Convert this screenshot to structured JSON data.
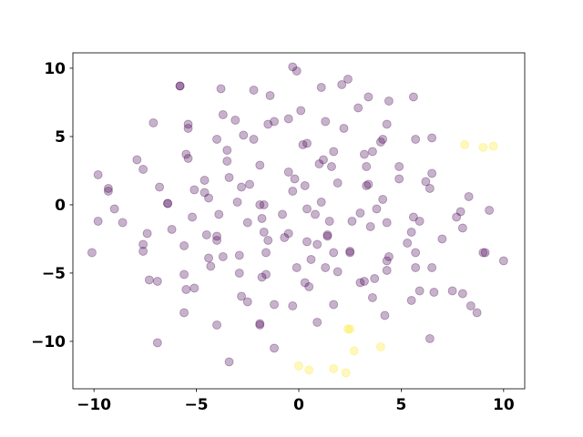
{
  "chart_data": {
    "type": "scatter",
    "xlim": [
      -11.03,
      11.03
    ],
    "ylim": [
      -13.47,
      11.13
    ],
    "xticks": [
      {
        "value": -10,
        "label": "−10"
      },
      {
        "value": -5,
        "label": "−5"
      },
      0,
      5,
      10
    ],
    "yticks": [
      {
        "value": -10,
        "label": "−10"
      },
      {
        "value": -5,
        "label": "−5"
      },
      0,
      5,
      10
    ],
    "series": [
      {
        "color": "#440154",
        "opacity": 0.3,
        "x": [
          -0.3,
          -0.1,
          -3.8,
          -2.2,
          -1.4,
          1.1,
          2.1,
          2.4,
          3.4,
          4.4,
          5.6,
          -5.8,
          -5.8,
          -7.1,
          -5.4,
          -5.4,
          -3.7,
          -3.1,
          -1.5,
          -1.2,
          -0.5,
          0.1,
          1.3,
          2.2,
          2.9,
          4.3,
          5.7,
          6.5,
          -2.2,
          -4.0,
          -2.7,
          -3.5,
          -3.5,
          -5.5,
          -5.4,
          -7.9,
          -7.6,
          -9.8,
          -9.3,
          -9.3,
          0.2,
          0.4,
          1.7,
          1.2,
          1.0,
          1.6,
          3.2,
          3.6,
          4.0,
          4.1,
          3.3,
          4.9,
          4.9,
          6.5,
          6.2,
          6.4,
          -1.9,
          -2.4,
          -3.4,
          -4.6,
          -5.1,
          -6.8,
          -6.4,
          -6.4,
          -4.4,
          -4.6,
          -2.8,
          -0.5,
          -0.2,
          0.3,
          1.1,
          1.9,
          3.3,
          3.4,
          4.1,
          8.3,
          -9.0,
          -9.8,
          -8.6,
          -7.4,
          -6.2,
          -5.2,
          -3.9,
          -3.0,
          -2.5,
          -1.8,
          -1.9,
          -1.7,
          -1.5,
          -1.7,
          -0.3,
          -0.8,
          -0.5,
          0.4,
          0.8,
          1.5,
          1.4,
          2.6,
          3.0,
          3.5,
          3.8,
          4.3,
          5.6,
          5.9,
          5.5,
          7.9,
          7.7,
          8.0,
          9.3,
          7.0,
          -7.6,
          -7.6,
          -5.6,
          -4.5,
          -4.0,
          -4.0,
          -2.9,
          -4.4,
          -4.3,
          -3.7,
          -1.6,
          -0.7,
          0.4,
          0.9,
          1.4,
          2.5,
          2.5,
          1.7,
          0.6,
          -0.1,
          1.3,
          1.9,
          3.2,
          3.7,
          4.4,
          4.3,
          4.3,
          5.3,
          5.7,
          5.7,
          6.5,
          9.0,
          9.1,
          10.0,
          -10.1,
          -7.3,
          -6.9,
          -5.6,
          -5.5,
          -5.1,
          -5.6,
          -2.9,
          -2.8,
          -2.5,
          -1.8,
          -1.6,
          -1.2,
          0.3,
          0.5,
          1.7,
          -0.3,
          3.6,
          3.0,
          5.5,
          5.9,
          6.6,
          7.5,
          8.0,
          8.4,
          8.7,
          4.2,
          -4.0,
          -1.9,
          -1.9,
          0.9,
          6.4,
          -6.9,
          -1.2,
          -3.4
        ],
        "values": [
          10.1,
          9.8,
          8.5,
          8.4,
          8.0,
          8.6,
          8.8,
          9.2,
          7.9,
          7.6,
          7.9,
          8.7,
          8.7,
          6.0,
          5.9,
          5.6,
          6.6,
          6.2,
          5.9,
          6.1,
          6.3,
          6.9,
          6.1,
          5.6,
          7.1,
          5.9,
          4.8,
          4.9,
          4.8,
          4.8,
          5.1,
          4.0,
          3.2,
          3.7,
          3.4,
          3.3,
          2.6,
          2.2,
          1.2,
          1.0,
          4.4,
          4.5,
          3.9,
          3.3,
          3.0,
          2.8,
          3.7,
          3.9,
          4.6,
          4.8,
          2.8,
          2.8,
          1.9,
          2.3,
          1.7,
          1.2,
          2.9,
          1.5,
          2.0,
          1.8,
          1.1,
          1.3,
          0.1,
          0.1,
          0.5,
          0.9,
          1.3,
          2.4,
          1.9,
          1.4,
          0.2,
          1.6,
          1.4,
          1.5,
          0.4,
          0.6,
          -0.3,
          -1.2,
          -1.3,
          -2.1,
          -1.8,
          -0.9,
          -0.7,
          0.2,
          -1.3,
          -1.0,
          0,
          0,
          -2.6,
          -2.0,
          1.0,
          -0.7,
          -2.1,
          -0.3,
          -0.7,
          -1.2,
          -2.2,
          -1.2,
          -0.6,
          -1.6,
          -0.3,
          -1.3,
          -0.9,
          -1.2,
          -2.0,
          -0.5,
          -0.9,
          -1.7,
          -0.4,
          -2.5,
          -2.9,
          -3.4,
          -3.0,
          -2.2,
          -2.3,
          -2.6,
          -3.7,
          -3.9,
          -4.5,
          -3.8,
          -3.5,
          -2.4,
          -2.7,
          -2.9,
          -2.3,
          -3.4,
          -3.5,
          -3.5,
          -4.0,
          -4.6,
          -4.6,
          -4.9,
          -5.6,
          -5.4,
          -3.8,
          -4.1,
          -4.8,
          -2.8,
          -3.5,
          -4.6,
          -4.6,
          -3.5,
          -3.5,
          -4.1,
          -3.5,
          -5.5,
          -5.6,
          -5.1,
          -6.2,
          -6.1,
          -7.9,
          -5.0,
          -6.7,
          -7.1,
          -5.3,
          -5.1,
          -7.3,
          -5.7,
          -6.0,
          -7.3,
          -7.4,
          -6.8,
          -5.7,
          -7.0,
          -6.3,
          -6.4,
          -6.3,
          -6.5,
          -7.4,
          -7.9,
          -8.1,
          -8.8,
          -8.7,
          -8.8,
          -8.6,
          -9.8,
          -10.1,
          -10.5,
          -11.5
        ]
      },
      {
        "color": "#fde725",
        "opacity": 0.3,
        "x": [
          8.1,
          9.0,
          9.5,
          2.5,
          2.4,
          2.7,
          4.0,
          0.0,
          0.5,
          1.7,
          2.3
        ],
        "values": [
          4.4,
          4.2,
          4.3,
          -9.1,
          -9.1,
          -10.7,
          -10.4,
          -11.8,
          -12.1,
          -12.0,
          -12.3
        ]
      }
    ]
  }
}
